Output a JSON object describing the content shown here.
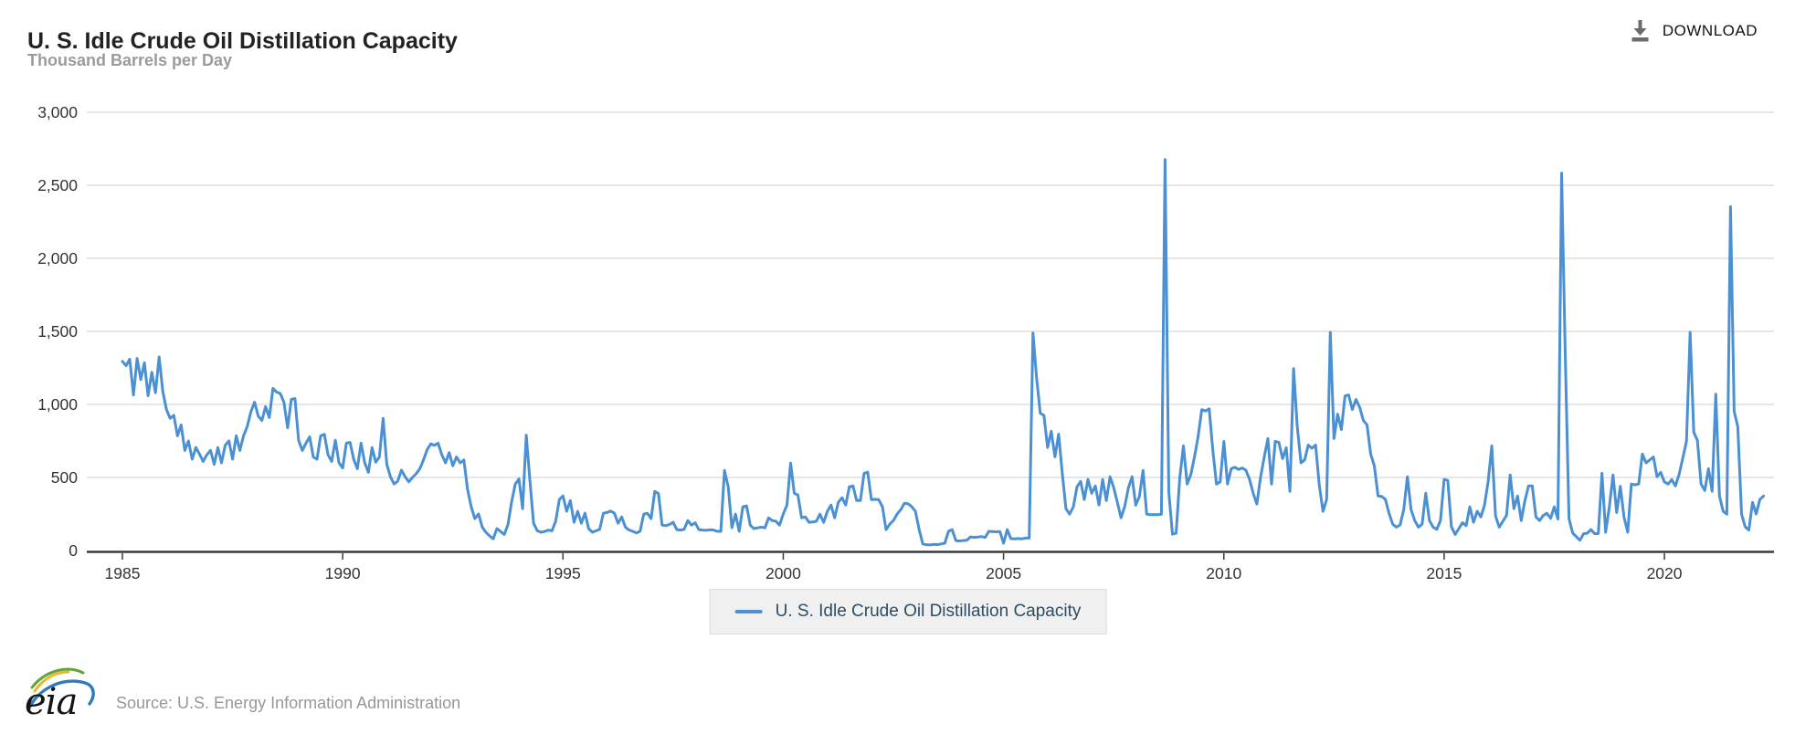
{
  "header": {
    "title": "U. S. Idle Crude Oil Distillation Capacity",
    "subtitle": "Thousand Barrels per Day",
    "download_label": "DOWNLOAD"
  },
  "legend": {
    "label": "U. S. Idle Crude Oil Distillation Capacity"
  },
  "footer": {
    "logo_text": "eia",
    "source": "Source: U.S. Energy Information Administration"
  },
  "colors": {
    "line": "#4a90d2",
    "grid": "#cccccc",
    "axis": "#3a3a3a",
    "axis_label": "#333333",
    "legend_text": "#2d4d63",
    "legend_bg": "#f0f0f0"
  },
  "chart_data": {
    "type": "line",
    "title": "U. S. Idle Crude Oil Distillation Capacity",
    "ylabel": "Thousand Barrels per Day",
    "xlabel": "",
    "ylim": [
      0,
      3000
    ],
    "grid": true,
    "legend_position": "bottom",
    "frequency": "monthly",
    "start_year": 1985,
    "end_label": "2022",
    "yticks": [
      {
        "value": 0,
        "label": "0"
      },
      {
        "value": 500,
        "label": "500"
      },
      {
        "value": 1000,
        "label": "1,000"
      },
      {
        "value": 1500,
        "label": "1,500"
      },
      {
        "value": 2000,
        "label": "2,000"
      },
      {
        "value": 2500,
        "label": "2,500"
      },
      {
        "value": 3000,
        "label": "3,000"
      }
    ],
    "xticks": [
      {
        "year": 1985,
        "label": "1985"
      },
      {
        "year": 1990,
        "label": "1990"
      },
      {
        "year": 1995,
        "label": "1995"
      },
      {
        "year": 2000,
        "label": "2000"
      },
      {
        "year": 2005,
        "label": "2005"
      },
      {
        "year": 2010,
        "label": "2010"
      },
      {
        "year": 2015,
        "label": "2015"
      },
      {
        "year": 2020,
        "label": "2020"
      }
    ],
    "series": [
      {
        "name": "U. S. Idle Crude Oil Distillation Capacity",
        "color": "#4a90d2",
        "values": [
          1295,
          1265,
          1310,
          1065,
          1315,
          1170,
          1285,
          1060,
          1220,
          1080,
          1325,
          1090,
          965,
          905,
          925,
          785,
          860,
          685,
          750,
          625,
          705,
          660,
          610,
          655,
          685,
          590,
          705,
          600,
          720,
          750,
          625,
          785,
          685,
          785,
          850,
          950,
          1015,
          920,
          890,
          985,
          910,
          1110,
          1085,
          1075,
          1015,
          840,
          1035,
          1040,
          755,
          685,
          735,
          778,
          640,
          625,
          785,
          795,
          655,
          610,
          755,
          600,
          565,
          735,
          740,
          625,
          560,
          735,
          600,
          535,
          705,
          605,
          640,
          905,
          590,
          505,
          455,
          475,
          550,
          505,
          470,
          500,
          525,
          560,
          620,
          690,
          730,
          720,
          735,
          655,
          600,
          670,
          580,
          640,
          600,
          620,
          420,
          300,
          218,
          250,
          160,
          125,
          100,
          80,
          150,
          130,
          110,
          175,
          330,
          455,
          490,
          286,
          790,
          480,
          187,
          135,
          125,
          130,
          140,
          135,
          200,
          349,
          374,
          268,
          342,
          193,
          268,
          187,
          255,
          150,
          125,
          135,
          145,
          255,
          260,
          270,
          255,
          187,
          230,
          160,
          140,
          131,
          120,
          131,
          249,
          255,
          218,
          405,
          390,
          174,
          170,
          178,
          193,
          143,
          140,
          145,
          205,
          174,
          190,
          143,
          140,
          138,
          142,
          140,
          131,
          131,
          548,
          436,
          156,
          249,
          131,
          299,
          305,
          174,
          150,
          155,
          160,
          155,
          224,
          205,
          200,
          174,
          249,
          311,
          598,
          392,
          380,
          224,
          230,
          193,
          195,
          200,
          249,
          193,
          268,
          311,
          224,
          330,
          361,
          311,
          436,
          442,
          342,
          342,
          529,
          536,
          349,
          350,
          348,
          300,
          143,
          180,
          205,
          249,
          280,
          324,
          320,
          300,
          268,
          143,
          45,
          40,
          38,
          42,
          40,
          45,
          50,
          131,
          143,
          68,
          65,
          68,
          70,
          93,
          90,
          92,
          95,
          90,
          131,
          130,
          128,
          130,
          50,
          143,
          81,
          80,
          82,
          80,
          85,
          85,
          1488,
          1180,
          940,
          925,
          705,
          816,
          641,
          797,
          529,
          286,
          249,
          299,
          436,
          473,
          349,
          486,
          392,
          442,
          311,
          486,
          342,
          505,
          430,
          330,
          224,
          300,
          430,
          505,
          310,
          370,
          548,
          249,
          245,
          246,
          245,
          248,
          2677,
          400,
          112,
          118,
          498,
          716,
          455,
          520,
          640,
          780,
          965,
          955,
          970,
          685,
          455,
          470,
          747,
          455,
          560,
          570,
          555,
          565,
          550,
          486,
          392,
          318,
          500,
          641,
          766,
          455,
          747,
          740,
          629,
          704,
          405,
          1245,
          850,
          600,
          620,
          722,
          700,
          722,
          450,
          268,
          350,
          1494,
          766,
          934,
          828,
          1058,
          1065,
          965,
          1034,
          980,
          890,
          860,
          660,
          580,
          373,
          370,
          350,
          255,
          180,
          160,
          175,
          280,
          505,
          280,
          205,
          160,
          180,
          392,
          205,
          160,
          145,
          205,
          486,
          480,
          162,
          110,
          150,
          190,
          170,
          299,
          193,
          268,
          230,
          310,
          473,
          716,
          237,
          160,
          200,
          240,
          517,
          287,
          373,
          205,
          340,
          442,
          442,
          230,
          205,
          240,
          255,
          220,
          299,
          215,
          2584,
          1345,
          218,
          120,
          95,
          70,
          115,
          118,
          143,
          115,
          116,
          529,
          125,
          300,
          517,
          260,
          440,
          230,
          125,
          455,
          450,
          455,
          660,
          600,
          620,
          640,
          505,
          535,
          470,
          455,
          485,
          442,
          520,
          630,
          747,
          1494,
          810,
          753,
          455,
          411,
          560,
          405,
          1070,
          373,
          268,
          249,
          2354,
          953,
          847,
          249,
          162,
          140,
          330,
          250,
          349,
          373
        ]
      }
    ]
  }
}
